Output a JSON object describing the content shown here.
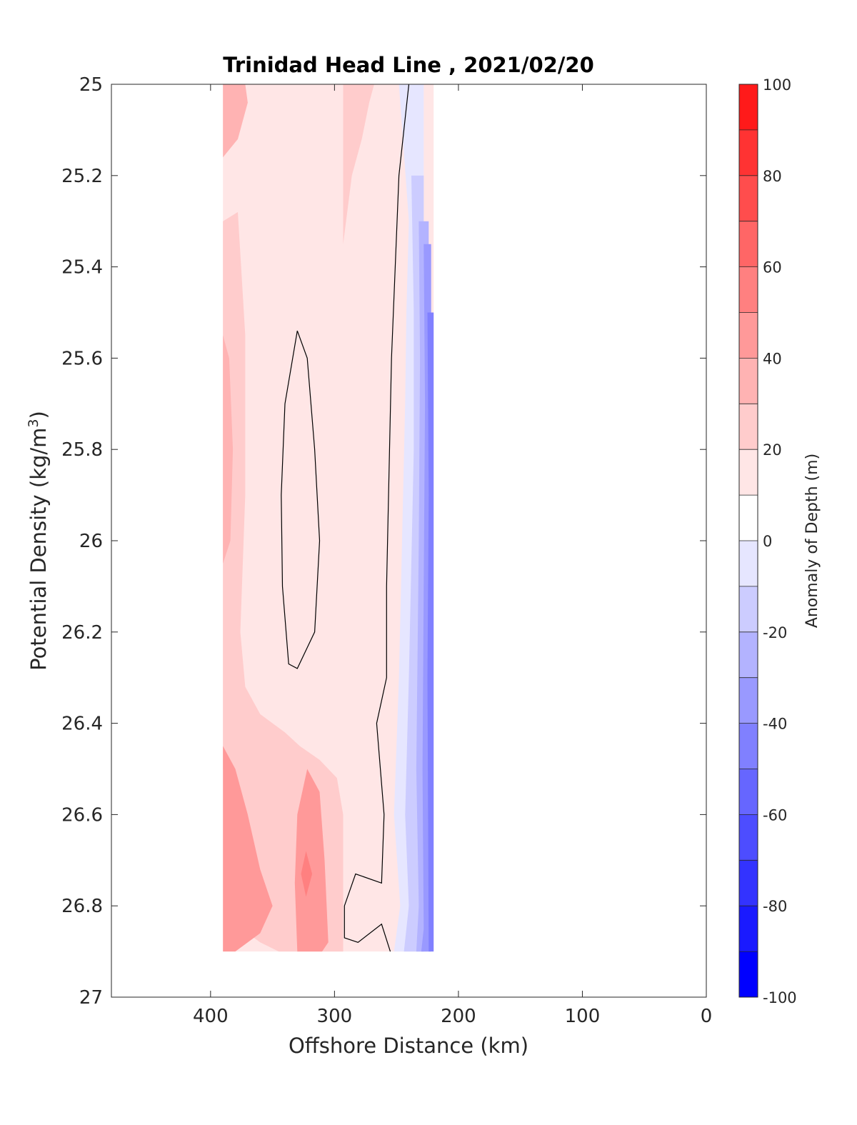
{
  "chart_data": {
    "type": "heatmap",
    "subtype": "filled-contour section",
    "title": "Trinidad Head Line , 2021/02/20",
    "xlabel": "Offshore Distance (km)",
    "ylabel_main": "Potential Density (kg/m",
    "ylabel_sup": "3",
    "ylabel_end": ")",
    "xlim": [
      480,
      0
    ],
    "x_reversed": true,
    "ylim": [
      25,
      27
    ],
    "y_reversed": true,
    "x_ticks": [
      400,
      300,
      200,
      100,
      0
    ],
    "x_tick_labels": [
      "400",
      "300",
      "200",
      "100",
      "0"
    ],
    "y_ticks": [
      25,
      25.2,
      25.4,
      25.6,
      25.8,
      26,
      26.2,
      26.4,
      26.6,
      26.8,
      27
    ],
    "y_tick_labels": [
      "25",
      "25.2",
      "25.4",
      "25.6",
      "25.8",
      "26",
      "26.2",
      "26.4",
      "26.6",
      "26.8",
      "27"
    ],
    "data_extent": {
      "x": [
        390,
        220
      ],
      "y": [
        25,
        26.9
      ]
    },
    "colorbar": {
      "label": "Anomaly of Depth (m)",
      "clim": [
        -100,
        100
      ],
      "levels": [
        -100,
        -90,
        -80,
        -70,
        -60,
        -50,
        -40,
        -30,
        -20,
        -10,
        0,
        10,
        20,
        30,
        40,
        50,
        60,
        70,
        80,
        90,
        100
      ],
      "tick_values": [
        100,
        80,
        60,
        40,
        20,
        0,
        -20,
        -40,
        -60,
        -80,
        -100
      ],
      "tick_labels": [
        "100",
        "80",
        "60",
        "40",
        "20",
        "0",
        "-20",
        "-40",
        "-60",
        "-80",
        "-100"
      ],
      "colors": [
        "#0000ff",
        "#1a1aff",
        "#3333ff",
        "#4d4dff",
        "#6666ff",
        "#8080ff",
        "#9999ff",
        "#b3b3ff",
        "#ccccff",
        "#e6e6ff",
        "#ffffff",
        "#ffe6e6",
        "#ffcccc",
        "#ffb3b3",
        "#ff9999",
        "#ff8080",
        "#ff6666",
        "#ff4d4d",
        "#ff3333",
        "#ff1a1a"
      ]
    },
    "grid": false,
    "zero_contour_color": "#000000",
    "regions": [
      {
        "level": 30,
        "color": "#ffb3b3",
        "poly": [
          [
            390,
            25
          ],
          [
            372,
            25
          ],
          [
            370,
            25.04
          ],
          [
            378,
            25.12
          ],
          [
            390,
            25.16
          ]
        ]
      },
      {
        "level": 20,
        "color": "#ffcccc",
        "poly": [
          [
            293,
            25
          ],
          [
            268,
            25
          ],
          [
            272,
            25.04
          ],
          [
            278,
            25.12
          ],
          [
            286,
            25.2
          ],
          [
            293,
            25.35
          ]
        ]
      },
      {
        "level": 20,
        "color": "#ffcccc",
        "poly": [
          [
            378,
            25.28
          ],
          [
            372,
            25.55
          ],
          [
            372,
            25.9
          ],
          [
            376,
            26.2
          ],
          [
            372,
            26.32
          ],
          [
            360,
            26.38
          ],
          [
            340,
            26.42
          ],
          [
            328,
            26.45
          ],
          [
            312,
            26.48
          ],
          [
            298,
            26.52
          ],
          [
            293,
            26.6
          ],
          [
            293,
            26.9
          ],
          [
            345,
            26.9
          ],
          [
            360,
            26.88
          ],
          [
            375,
            26.85
          ],
          [
            380,
            26.72
          ],
          [
            385,
            26.6
          ],
          [
            390,
            26.5
          ],
          [
            390,
            25.3
          ]
        ]
      },
      {
        "level": 30,
        "color": "#ffb3b3",
        "poly": [
          [
            390,
            25.55
          ],
          [
            385,
            25.6
          ],
          [
            382,
            25.8
          ],
          [
            384,
            26.0
          ],
          [
            390,
            26.05
          ]
        ]
      },
      {
        "level": 40,
        "color": "#ff9999",
        "poly": [
          [
            390,
            26.45
          ],
          [
            380,
            26.5
          ],
          [
            370,
            26.6
          ],
          [
            360,
            26.72
          ],
          [
            350,
            26.8
          ],
          [
            360,
            26.86
          ],
          [
            380,
            26.9
          ],
          [
            390,
            26.9
          ]
        ]
      },
      {
        "level": 40,
        "color": "#ff9999",
        "poly": [
          [
            322,
            26.5
          ],
          [
            312,
            26.55
          ],
          [
            308,
            26.7
          ],
          [
            305,
            26.88
          ],
          [
            310,
            26.9
          ],
          [
            330,
            26.9
          ],
          [
            332,
            26.75
          ],
          [
            330,
            26.6
          ]
        ]
      },
      {
        "level": 50,
        "color": "#ff8080",
        "poly": [
          [
            323,
            26.68
          ],
          [
            318,
            26.73
          ],
          [
            323,
            26.78
          ],
          [
            327,
            26.73
          ]
        ]
      },
      {
        "level": -10,
        "color": "#e6e6ff",
        "poly": [
          [
            248,
            25
          ],
          [
            240,
            25.3
          ],
          [
            242,
            25.5
          ],
          [
            243,
            25.7
          ],
          [
            248,
            26.3
          ],
          [
            252,
            26.6
          ],
          [
            247,
            26.8
          ],
          [
            252,
            26.9
          ],
          [
            228,
            26.9
          ],
          [
            228,
            25
          ]
        ]
      },
      {
        "level": -20,
        "color": "#ccccff",
        "poly": [
          [
            238,
            25.2
          ],
          [
            236,
            25.5
          ],
          [
            236,
            25.8
          ],
          [
            240,
            26.3
          ],
          [
            243,
            26.6
          ],
          [
            240,
            26.8
          ],
          [
            244,
            26.9
          ],
          [
            228,
            26.9
          ],
          [
            228,
            25.2
          ]
        ]
      },
      {
        "level": -30,
        "color": "#b3b3ff",
        "poly": [
          [
            232,
            25.3
          ],
          [
            231,
            25.6
          ],
          [
            232,
            26.0
          ],
          [
            234,
            26.5
          ],
          [
            232,
            26.8
          ],
          [
            234,
            26.9
          ],
          [
            224,
            26.9
          ],
          [
            224,
            25.3
          ]
        ]
      },
      {
        "level": -40,
        "color": "#9999ff",
        "poly": [
          [
            228,
            25.35
          ],
          [
            227,
            25.7
          ],
          [
            228,
            26.1
          ],
          [
            229,
            26.5
          ],
          [
            228,
            26.85
          ],
          [
            230,
            26.9
          ],
          [
            222,
            26.9
          ],
          [
            222,
            25.35
          ]
        ]
      },
      {
        "level": -50,
        "color": "#8080ff",
        "poly": [
          [
            225,
            25.5
          ],
          [
            224,
            25.9
          ],
          [
            225,
            26.3
          ],
          [
            224,
            26.9
          ],
          [
            220,
            26.9
          ],
          [
            220,
            25.5
          ]
        ]
      }
    ],
    "contours": [
      {
        "level": 0,
        "points": [
          [
            240,
            25
          ],
          [
            248,
            25.2
          ],
          [
            254,
            25.6
          ],
          [
            258,
            26.1
          ],
          [
            258,
            26.3
          ],
          [
            266,
            26.4
          ],
          [
            260,
            26.6
          ],
          [
            262,
            26.75
          ],
          [
            283,
            26.73
          ],
          [
            292,
            26.8
          ],
          [
            292,
            26.87
          ],
          [
            281,
            26.88
          ],
          [
            262,
            26.84
          ],
          [
            255,
            26.9
          ]
        ]
      },
      {
        "level": 0,
        "points": [
          [
            330,
            25.54
          ],
          [
            322,
            25.6
          ],
          [
            316,
            25.8
          ],
          [
            312,
            26.0
          ],
          [
            316,
            26.2
          ],
          [
            330,
            26.28
          ],
          [
            337,
            26.27
          ],
          [
            342,
            26.1
          ],
          [
            343,
            25.9
          ],
          [
            340,
            25.7
          ],
          [
            330,
            25.54
          ]
        ]
      }
    ]
  }
}
